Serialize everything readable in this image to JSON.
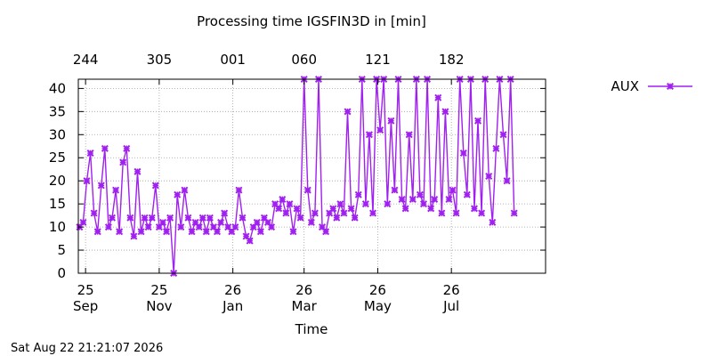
{
  "chart_data": {
    "type": "line",
    "title": "Processing time IGSFIN3D in [min]",
    "xlabel": "Time",
    "ylabel": "",
    "ylim": [
      0,
      42
    ],
    "y_ticks": [
      0,
      5,
      10,
      15,
      20,
      25,
      30,
      35,
      40
    ],
    "xlim": [
      "2025-08-26",
      "2026-09-17"
    ],
    "x_ticks": [
      {
        "date": "2025-09-01",
        "label": "25\nSep"
      },
      {
        "date": "2025-11-01",
        "label": "25\nNov"
      },
      {
        "date": "2026-01-01",
        "label": "26\nJan"
      },
      {
        "date": "2026-03-01",
        "label": "26\nMar"
      },
      {
        "date": "2026-05-01",
        "label": "26\nMay"
      },
      {
        "date": "2026-07-01",
        "label": "26\nJul"
      }
    ],
    "x2_ticks": [
      {
        "date": "2025-09-01",
        "label": "244"
      },
      {
        "date": "2025-11-01",
        "label": "305"
      },
      {
        "date": "2026-01-01",
        "label": "001"
      },
      {
        "date": "2026-03-01",
        "label": "060"
      },
      {
        "date": "2026-05-01",
        "label": "121"
      },
      {
        "date": "2026-07-01",
        "label": "182"
      }
    ],
    "grid": true,
    "legend_position": "top-right, outside plot",
    "timestamp": "Sat Aug 22 21:21:07 2026",
    "series": [
      {
        "name": "AUX",
        "color": "#a020f0",
        "marker": "x-cross",
        "x": [
          "2025-08-27",
          "2025-08-30",
          "2025-09-02",
          "2025-09-05",
          "2025-09-08",
          "2025-09-11",
          "2025-09-14",
          "2025-09-17",
          "2025-09-20",
          "2025-09-23",
          "2025-09-26",
          "2025-09-29",
          "2025-10-02",
          "2025-10-05",
          "2025-10-08",
          "2025-10-11",
          "2025-10-14",
          "2025-10-17",
          "2025-10-20",
          "2025-10-23",
          "2025-10-26",
          "2025-10-29",
          "2025-11-01",
          "2025-11-04",
          "2025-11-07",
          "2025-11-10",
          "2025-11-13",
          "2025-11-16",
          "2025-11-19",
          "2025-11-22",
          "2025-11-25",
          "2025-11-28",
          "2025-12-01",
          "2025-12-04",
          "2025-12-07",
          "2025-12-10",
          "2025-12-13",
          "2025-12-16",
          "2025-12-19",
          "2025-12-22",
          "2025-12-25",
          "2025-12-28",
          "2025-12-31",
          "2026-01-03",
          "2026-01-06",
          "2026-01-09",
          "2026-01-12",
          "2026-01-15",
          "2026-01-18",
          "2026-01-21",
          "2026-01-24",
          "2026-01-27",
          "2026-01-30",
          "2026-02-02",
          "2026-02-05",
          "2026-02-08",
          "2026-02-11",
          "2026-02-14",
          "2026-02-17",
          "2026-02-20",
          "2026-02-23",
          "2026-02-26",
          "2026-03-01",
          "2026-03-04",
          "2026-03-07",
          "2026-03-10",
          "2026-03-13",
          "2026-03-16",
          "2026-03-19",
          "2026-03-22",
          "2026-03-25",
          "2026-03-28",
          "2026-03-31",
          "2026-04-03",
          "2026-04-06",
          "2026-04-09",
          "2026-04-12",
          "2026-04-15",
          "2026-04-18",
          "2026-04-21",
          "2026-04-24",
          "2026-04-27",
          "2026-04-30",
          "2026-05-03",
          "2026-05-06",
          "2026-05-09",
          "2026-05-12",
          "2026-05-15",
          "2026-05-18",
          "2026-05-21",
          "2026-05-24",
          "2026-05-27",
          "2026-05-30",
          "2026-06-02",
          "2026-06-05",
          "2026-06-08",
          "2026-06-11",
          "2026-06-14",
          "2026-06-17",
          "2026-06-20",
          "2026-06-23",
          "2026-06-26",
          "2026-06-29",
          "2026-07-02",
          "2026-07-05",
          "2026-07-08",
          "2026-07-11",
          "2026-07-14",
          "2026-07-17",
          "2026-07-20",
          "2026-07-23",
          "2026-07-26",
          "2026-07-29",
          "2026-08-01",
          "2026-08-04",
          "2026-08-07",
          "2026-08-10",
          "2026-08-13",
          "2026-08-16",
          "2026-08-19",
          "2026-08-22"
        ],
        "y": [
          10,
          11,
          20,
          26,
          13,
          9,
          19,
          27,
          10,
          12,
          18,
          9,
          24,
          27,
          12,
          8,
          22,
          9,
          12,
          10,
          12,
          19,
          10,
          11,
          9,
          12,
          0,
          17,
          10,
          18,
          12,
          9,
          11,
          10,
          12,
          9,
          12,
          10,
          9,
          11,
          13,
          10,
          9,
          10,
          18,
          12,
          8,
          7,
          10,
          11,
          9,
          12,
          11,
          10,
          15,
          14,
          16,
          13,
          15,
          9,
          14,
          12,
          42,
          18,
          11,
          13,
          42,
          10,
          9,
          13,
          14,
          12,
          15,
          13,
          35,
          14,
          12,
          17,
          42,
          15,
          30,
          13,
          42,
          31,
          42,
          15,
          33,
          18,
          42,
          16,
          14,
          30,
          16,
          42,
          17,
          15,
          42,
          14,
          16,
          38,
          13,
          35,
          16,
          18,
          13,
          42,
          26,
          17,
          42,
          14,
          33,
          13,
          42,
          21,
          11,
          27,
          42,
          30,
          20,
          42,
          13
        ]
      }
    ]
  }
}
